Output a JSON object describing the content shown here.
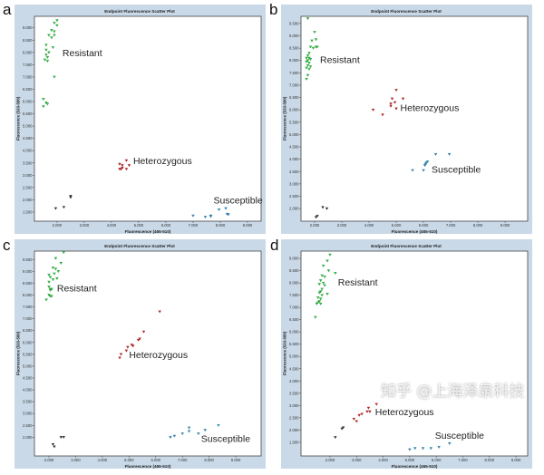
{
  "colors": {
    "resistant": "#22c23a",
    "heterozygous": "#c81e1e",
    "susceptible": "#2a8ec4",
    "ntc": "#333333",
    "frame": "#c9d9e8",
    "plot_bg": "#ffffff"
  },
  "watermark": "知乎 @上海泽泉科技",
  "chart_data": [
    {
      "panel_letter": "a",
      "type": "scatter",
      "title": "Endpoint Fluorescence Scatter Plot",
      "xlabel": "Fluorescence (465-510)",
      "ylabel": "Fluorescence (533-580)",
      "xlim": [
        1170,
        9500
      ],
      "ylim": [
        1130,
        9470
      ],
      "xticks": [
        "2.000",
        "3.000",
        "4.000",
        "5.000",
        "6.000",
        "7.000",
        "8.000",
        "9.000"
      ],
      "yticks": [
        "1.500",
        "2.000",
        "2.500",
        "3.000",
        "3.500",
        "4.000",
        "4.500",
        "5.000",
        "5.500",
        "6.000",
        "6.500",
        "7.000",
        "7.500",
        "8.000",
        "8.500",
        "9.000"
      ],
      "groups": [
        {
          "label": "Resistant",
          "color_key": "resistant",
          "points": [
            [
              1900,
              9200
            ],
            [
              2000,
              9300
            ],
            [
              2000,
              9100
            ],
            [
              1800,
              8900
            ],
            [
              1900,
              8850
            ],
            [
              1700,
              8700
            ],
            [
              1900,
              8700
            ],
            [
              1800,
              8600
            ],
            [
              1600,
              8300
            ],
            [
              1850,
              8200
            ],
            [
              1600,
              8100
            ],
            [
              1700,
              8000
            ],
            [
              1600,
              7900
            ],
            [
              1650,
              7800
            ],
            [
              1550,
              7700
            ],
            [
              1650,
              7650
            ],
            [
              1900,
              7000
            ],
            [
              1500,
              6100
            ],
            [
              1600,
              5950
            ],
            [
              1650,
              5900
            ],
            [
              1500,
              5800
            ]
          ]
        },
        {
          "label": "Heterozygous",
          "color_key": "heterozygous",
          "points": [
            [
              4300,
              3450
            ],
            [
              4400,
              3400
            ],
            [
              4550,
              3600
            ],
            [
              4650,
              3400
            ],
            [
              4300,
              3250
            ],
            [
              4350,
              3250
            ],
            [
              4550,
              3250
            ],
            [
              4400,
              3300
            ]
          ]
        },
        {
          "label": "Susceptible",
          "color_key": "susceptible",
          "points": [
            [
              7000,
              1350
            ],
            [
              7450,
              1300
            ],
            [
              7650,
              1350
            ],
            [
              7650,
              1320
            ],
            [
              7950,
              1600
            ],
            [
              8200,
              1650
            ],
            [
              8250,
              1420
            ],
            [
              8300,
              1400
            ]
          ]
        },
        {
          "label": "",
          "color_key": "ntc",
          "points": [
            [
              1950,
              1650
            ],
            [
              2250,
              1700
            ],
            [
              2500,
              2100
            ],
            [
              2500,
              2150
            ]
          ]
        }
      ]
    },
    {
      "panel_letter": "b",
      "type": "scatter",
      "title": "Endpoint Fluorescence Scatter Plot",
      "xlabel": "Fluorescence (465-510)",
      "ylabel": "Fluorescence (533-580)",
      "xlim": [
        1500,
        9830
      ],
      "ylim": [
        1490,
        9790
      ],
      "xticks": [
        "2.000",
        "3.000",
        "4.000",
        "5.000",
        "6.000",
        "7.000",
        "8.000",
        "9.000"
      ],
      "yticks": [
        "2.000",
        "2.500",
        "3.000",
        "3.500",
        "4.000",
        "4.500",
        "5.000",
        "5.500",
        "6.000",
        "6.500",
        "7.000",
        "7.500",
        "8.000",
        "8.500",
        "9.000",
        "9.500"
      ],
      "groups": [
        {
          "label": "Resistant",
          "color_key": "resistant",
          "points": [
            [
              1750,
              9700
            ],
            [
              2000,
              9150
            ],
            [
              1900,
              8800
            ],
            [
              2050,
              8850
            ],
            [
              1850,
              8550
            ],
            [
              1950,
              8500
            ],
            [
              2050,
              8550
            ],
            [
              2100,
              8550
            ],
            [
              1800,
              8300
            ],
            [
              1750,
              8200
            ],
            [
              1700,
              8100
            ],
            [
              1800,
              8100
            ],
            [
              1750,
              8000
            ],
            [
              1850,
              8050
            ],
            [
              1700,
              7950
            ],
            [
              1800,
              7900
            ],
            [
              1750,
              7800
            ],
            [
              1850,
              7750
            ],
            [
              1700,
              7700
            ],
            [
              1800,
              7650
            ],
            [
              1750,
              7400
            ],
            [
              1700,
              7250
            ]
          ]
        },
        {
          "label": "Heterozygous",
          "color_key": "heterozygous",
          "points": [
            [
              4150,
              6000
            ],
            [
              4500,
              5800
            ],
            [
              4800,
              6150
            ],
            [
              4850,
              6450
            ],
            [
              4800,
              6250
            ],
            [
              4950,
              6300
            ],
            [
              5000,
              6800
            ],
            [
              5000,
              6050
            ],
            [
              5250,
              6450
            ]
          ]
        },
        {
          "label": "Susceptible",
          "color_key": "susceptible",
          "points": [
            [
              5600,
              3550
            ],
            [
              6000,
              3550
            ],
            [
              6050,
              3750
            ],
            [
              6080,
              3800
            ],
            [
              6100,
              3850
            ],
            [
              6150,
              3900
            ],
            [
              6450,
              4200
            ],
            [
              6950,
              4200
            ]
          ]
        },
        {
          "label": "",
          "color_key": "ntc",
          "points": [
            [
              2100,
              1700
            ],
            [
              2050,
              1650
            ],
            [
              2300,
              2050
            ],
            [
              2450,
              2000
            ]
          ]
        }
      ]
    },
    {
      "panel_letter": "c",
      "type": "scatter",
      "title": "Endpoint Fluorescence Scatter Plot",
      "xlabel": "Fluorescence (465-510)",
      "ylabel": "Fluorescence (533-580)",
      "xlim": [
        1455,
        9950
      ],
      "ylim": [
        1210,
        9855
      ],
      "xticks": [
        "2.000",
        "3.000",
        "4.000",
        "5.000",
        "6.000",
        "7.000",
        "8.000",
        "9.000"
      ],
      "yticks": [
        "2.000",
        "2.500",
        "3.000",
        "3.500",
        "4.000",
        "4.500",
        "5.000",
        "5.500",
        "6.000",
        "6.500",
        "7.000",
        "7.500",
        "8.000",
        "8.500",
        "9.000",
        "9.500"
      ],
      "groups": [
        {
          "label": "Resistant",
          "color_key": "resistant",
          "points": [
            [
              2550,
              9800
            ],
            [
              2250,
              9550
            ],
            [
              2450,
              9350
            ],
            [
              2150,
              9150
            ],
            [
              2250,
              9100
            ],
            [
              2350,
              9000
            ],
            [
              2200,
              8900
            ],
            [
              2000,
              8850
            ],
            [
              2300,
              8700
            ],
            [
              2050,
              8750
            ],
            [
              2150,
              8650
            ],
            [
              2000,
              8550
            ],
            [
              2000,
              8350
            ],
            [
              2050,
              8250
            ],
            [
              2100,
              8250
            ],
            [
              2050,
              8200
            ],
            [
              2000,
              8000
            ],
            [
              2050,
              7950
            ],
            [
              2100,
              7950
            ],
            [
              1900,
              7800
            ]
          ]
        },
        {
          "label": "Heterozygous",
          "color_key": "heterozygous",
          "points": [
            [
              4650,
              5350
            ],
            [
              4700,
              5500
            ],
            [
              4900,
              5650
            ],
            [
              4950,
              5800
            ],
            [
              5100,
              5900
            ],
            [
              5150,
              5850
            ],
            [
              5350,
              6100
            ],
            [
              5400,
              6150
            ],
            [
              5550,
              6450
            ],
            [
              6150,
              7300
            ]
          ]
        },
        {
          "label": "Susceptible",
          "color_key": "susceptible",
          "points": [
            [
              6550,
              2000
            ],
            [
              6700,
              2050
            ],
            [
              7000,
              2150
            ],
            [
              7250,
              2400
            ],
            [
              7250,
              2250
            ],
            [
              7600,
              2150
            ],
            [
              7850,
              2300
            ],
            [
              8350,
              2500
            ]
          ]
        },
        {
          "label": "",
          "color_key": "ntc",
          "points": [
            [
              2150,
              1700
            ],
            [
              2200,
              1600
            ],
            [
              2450,
              2000
            ],
            [
              2550,
              2000
            ]
          ]
        }
      ]
    },
    {
      "panel_letter": "d",
      "type": "scatter",
      "title": "Endpoint Fluorescence Scatter Plot",
      "xlabel": "Fluorescence (465-510)",
      "ylabel": "Fluorescence (533-580)",
      "xlim": [
        910,
        9440
      ],
      "ylim": [
        940,
        9300
      ],
      "xticks": [
        "2.000",
        "3.000",
        "4.000",
        "5.000",
        "6.000",
        "7.000",
        "8.000",
        "9.000"
      ],
      "yticks": [
        "1.500",
        "2.000",
        "2.500",
        "3.000",
        "3.500",
        "4.000",
        "4.500",
        "5.000",
        "5.500",
        "6.000",
        "6.500",
        "7.000",
        "7.500",
        "8.000",
        "8.500",
        "9.000"
      ],
      "groups": [
        {
          "label": "Resistant",
          "color_key": "resistant",
          "points": [
            [
              2000,
              9150
            ],
            [
              1900,
              8900
            ],
            [
              1750,
              8700
            ],
            [
              1950,
              8500
            ],
            [
              2200,
              8400
            ],
            [
              1700,
              8300
            ],
            [
              1800,
              8250
            ],
            [
              1650,
              8100
            ],
            [
              1750,
              8000
            ],
            [
              1600,
              7950
            ],
            [
              1800,
              7900
            ],
            [
              1700,
              7750
            ],
            [
              1650,
              7650
            ],
            [
              1600,
              7600
            ],
            [
              1900,
              7550
            ],
            [
              1700,
              7500
            ],
            [
              1550,
              7400
            ],
            [
              1650,
              7350
            ],
            [
              1600,
              7250
            ],
            [
              1500,
              7150
            ],
            [
              1550,
              7200
            ],
            [
              1650,
              7150
            ],
            [
              1450,
              6600
            ]
          ]
        },
        {
          "label": "Heterozygous",
          "color_key": "heterozygous",
          "points": [
            [
              2900,
              2450
            ],
            [
              3000,
              2350
            ],
            [
              3100,
              2600
            ],
            [
              3200,
              2650
            ],
            [
              3400,
              2750
            ],
            [
              3450,
              2900
            ],
            [
              3500,
              2750
            ],
            [
              3750,
              3050
            ]
          ]
        },
        {
          "label": "Susceptible",
          "color_key": "susceptible",
          "points": [
            [
              5000,
              1200
            ],
            [
              5200,
              1250
            ],
            [
              5500,
              1250
            ],
            [
              5800,
              1250
            ],
            [
              6100,
              1300
            ],
            [
              6500,
              1450
            ]
          ]
        },
        {
          "label": "",
          "color_key": "ntc",
          "points": [
            [
              2200,
              1700
            ],
            [
              2500,
              2100
            ],
            [
              2450,
              2050
            ]
          ]
        }
      ]
    }
  ]
}
